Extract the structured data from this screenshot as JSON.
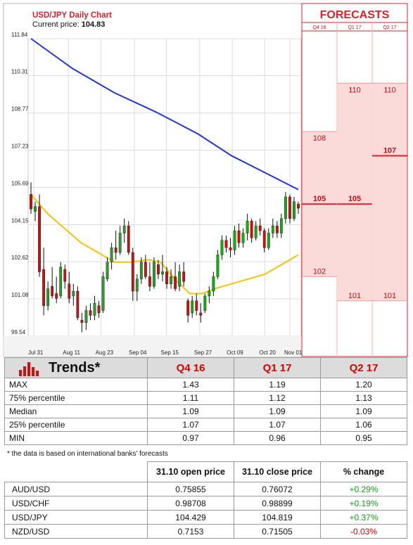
{
  "chart_data": {
    "type": "candlestick",
    "title": "USD/JPY Daily Chart",
    "current_price_label": "Current price:",
    "current_price_value": "104.83",
    "y_ticks": [
      "111.84",
      "110.31",
      "108.77",
      "107.23",
      "105.69",
      "104.15",
      "102.62",
      "101.08",
      "99.54"
    ],
    "ylim": [
      99.54,
      111.84
    ],
    "x_ticks": [
      "Jul 31",
      "Aug 11",
      "Aug 23",
      "Sep 04",
      "Sep 15",
      "Sep 27",
      "Oct 09",
      "Oct 20",
      "Nov 01"
    ],
    "candles": [
      [
        105.4,
        105.9,
        104.6,
        104.8
      ],
      [
        104.7,
        105.1,
        104.3,
        104.9
      ],
      [
        104.9,
        105.4,
        102.0,
        102.2
      ],
      [
        102.3,
        103.2,
        100.4,
        100.8
      ],
      [
        100.8,
        101.8,
        100.6,
        101.5
      ],
      [
        101.6,
        102.4,
        101.1,
        101.2
      ],
      [
        101.3,
        102.0,
        100.9,
        101.1
      ],
      [
        101.2,
        102.6,
        101.1,
        102.4
      ],
      [
        102.3,
        102.5,
        101.5,
        101.8
      ],
      [
        101.7,
        102.2,
        100.9,
        101.1
      ],
      [
        101.2,
        101.7,
        100.8,
        101.4
      ],
      [
        101.4,
        101.6,
        100.2,
        100.3
      ],
      [
        100.2,
        100.5,
        99.7,
        100.1
      ],
      [
        100.1,
        100.8,
        99.8,
        100.6
      ],
      [
        100.6,
        100.9,
        100.2,
        100.4
      ],
      [
        100.4,
        101.2,
        100.2,
        100.9
      ],
      [
        100.8,
        101.0,
        100.3,
        100.5
      ],
      [
        100.6,
        102.2,
        100.5,
        102.0
      ],
      [
        101.9,
        102.8,
        101.8,
        102.6
      ],
      [
        102.6,
        103.4,
        102.3,
        103.2
      ],
      [
        103.2,
        103.9,
        102.7,
        103.0
      ],
      [
        103.0,
        104.1,
        102.9,
        103.8
      ],
      [
        103.8,
        104.4,
        103.4,
        104.1
      ],
      [
        104.1,
        104.3,
        102.9,
        103.0
      ],
      [
        103.0,
        103.2,
        101.0,
        101.4
      ],
      [
        101.4,
        102.1,
        101.0,
        101.9
      ],
      [
        101.9,
        102.8,
        101.7,
        102.6
      ],
      [
        102.6,
        102.9,
        101.9,
        102.0
      ],
      [
        102.0,
        102.6,
        101.4,
        101.6
      ],
      [
        101.6,
        102.8,
        101.5,
        102.6
      ],
      [
        102.5,
        102.7,
        101.9,
        102.1
      ],
      [
        102.1,
        102.9,
        101.8,
        102.2
      ],
      [
        102.2,
        102.4,
        101.5,
        101.7
      ],
      [
        101.7,
        102.3,
        101.5,
        102.0
      ],
      [
        102.0,
        102.6,
        101.4,
        101.5
      ],
      [
        101.6,
        102.5,
        101.4,
        102.2
      ],
      [
        102.2,
        102.6,
        101.6,
        101.8
      ],
      [
        101.0,
        101.1,
        100.1,
        100.4
      ],
      [
        100.5,
        101.2,
        100.3,
        101.0
      ],
      [
        101.0,
        101.3,
        100.4,
        100.6
      ],
      [
        100.5,
        100.9,
        100.1,
        100.4
      ],
      [
        100.6,
        101.3,
        100.5,
        101.2
      ],
      [
        101.2,
        101.6,
        100.9,
        101.4
      ],
      [
        101.4,
        102.2,
        101.2,
        102.0
      ],
      [
        102.0,
        103.1,
        101.9,
        102.9
      ],
      [
        102.9,
        103.7,
        102.7,
        103.5
      ],
      [
        103.5,
        103.7,
        103.0,
        103.2
      ],
      [
        103.2,
        103.6,
        102.8,
        103.1
      ],
      [
        103.1,
        104.1,
        102.9,
        103.9
      ],
      [
        103.9,
        104.2,
        103.2,
        103.4
      ],
      [
        103.4,
        104.0,
        103.2,
        103.8
      ],
      [
        103.8,
        104.6,
        103.5,
        104.3
      ],
      [
        104.3,
        104.4,
        103.4,
        103.6
      ],
      [
        103.6,
        104.3,
        103.5,
        104.1
      ],
      [
        104.1,
        104.4,
        103.7,
        103.9
      ],
      [
        103.9,
        104.0,
        103.0,
        103.2
      ],
      [
        103.2,
        104.0,
        103.1,
        103.8
      ],
      [
        103.8,
        104.4,
        103.6,
        104.1
      ],
      [
        104.1,
        104.3,
        103.6,
        103.8
      ],
      [
        103.8,
        104.6,
        103.6,
        104.4
      ],
      [
        104.4,
        105.5,
        104.2,
        105.3
      ],
      [
        105.3,
        105.4,
        104.2,
        104.4
      ],
      [
        104.4,
        105.3,
        104.3,
        105.1
      ],
      [
        105.0,
        105.1,
        104.6,
        104.83
      ]
    ],
    "ma_long": {
      "name": "",
      "color": "#2436d8",
      "points": [
        [
          0,
          111.84
        ],
        [
          10,
          110.6
        ],
        [
          20,
          109.6
        ],
        [
          30,
          108.8
        ],
        [
          40,
          107.9
        ],
        [
          48,
          107.0
        ],
        [
          56,
          106.3
        ],
        [
          64,
          105.6
        ]
      ]
    },
    "ma_short": {
      "name": "",
      "color": "#f5c20a",
      "points": [
        [
          0,
          105.4
        ],
        [
          4,
          104.6
        ],
        [
          8,
          104.0
        ],
        [
          12,
          103.4
        ],
        [
          16,
          103.0
        ],
        [
          20,
          102.6
        ],
        [
          24,
          102.6
        ],
        [
          28,
          102.7
        ],
        [
          31,
          102.6
        ],
        [
          35,
          101.8
        ],
        [
          38,
          101.3
        ],
        [
          41,
          101.3
        ],
        [
          44,
          101.5
        ],
        [
          48,
          101.7
        ],
        [
          52,
          101.9
        ],
        [
          56,
          102.1
        ],
        [
          60,
          102.5
        ],
        [
          64,
          102.9
        ]
      ]
    },
    "colors": {
      "up": "#1fa51f",
      "down": "#d01010",
      "wick": "#111111"
    }
  },
  "forecasts": {
    "title": "FORECASTS",
    "columns": [
      {
        "label": "Q4 16",
        "mid": "105",
        "high": "108",
        "low": "102",
        "hi_val": 108,
        "lo_val": 102,
        "mid_val": 105
      },
      {
        "label": "Q1 17",
        "mid": "105",
        "high": "110",
        "low": "101",
        "hi_val": 110,
        "lo_val": 101,
        "mid_val": 105
      },
      {
        "label": "Q2 17",
        "mid": "107",
        "high": "110",
        "low": "101",
        "hi_val": 110,
        "lo_val": 101,
        "mid_val": 107
      }
    ],
    "colors": {
      "accent": "#e0202a",
      "fill": "#fbdada",
      "fill_light": "#fdeeee"
    }
  },
  "trends": {
    "title": "Trends*",
    "columns": [
      "Q4 16",
      "Q1 17",
      "Q2 17"
    ],
    "rows": [
      {
        "label": "MAX",
        "values": [
          "1.43",
          "1.19",
          "1.20"
        ]
      },
      {
        "label": "75% percentile",
        "values": [
          "1.11",
          "1.12",
          "1.13"
        ]
      },
      {
        "label": "Median",
        "values": [
          "1.09",
          "1.09",
          "1.09"
        ]
      },
      {
        "label": "25% percentile",
        "values": [
          "1.07",
          "1.07",
          "1.06"
        ]
      },
      {
        "label": "MIN",
        "values": [
          "0.97",
          "0.96",
          "0.95"
        ]
      }
    ]
  },
  "footnote": "* the data is based on international banks' forecasts",
  "prices": {
    "headers": [
      "31.10 open price",
      "31.10 close price",
      "% change"
    ],
    "rows": [
      {
        "pair": "AUD/USD",
        "open": "0.75855",
        "close": "0.76072",
        "change": "+0.29%",
        "dir": "pos"
      },
      {
        "pair": "USD/CHF",
        "open": "0.98708",
        "close": "0.98899",
        "change": "+0.19%",
        "dir": "pos"
      },
      {
        "pair": "USD/JPY",
        "open": "104.429",
        "close": "104.819",
        "change": "+0.37%",
        "dir": "pos"
      },
      {
        "pair": "NZD/USD",
        "open": "0.7153",
        "close": "0.71505",
        "change": "-0.03%",
        "dir": "neg"
      }
    ]
  }
}
